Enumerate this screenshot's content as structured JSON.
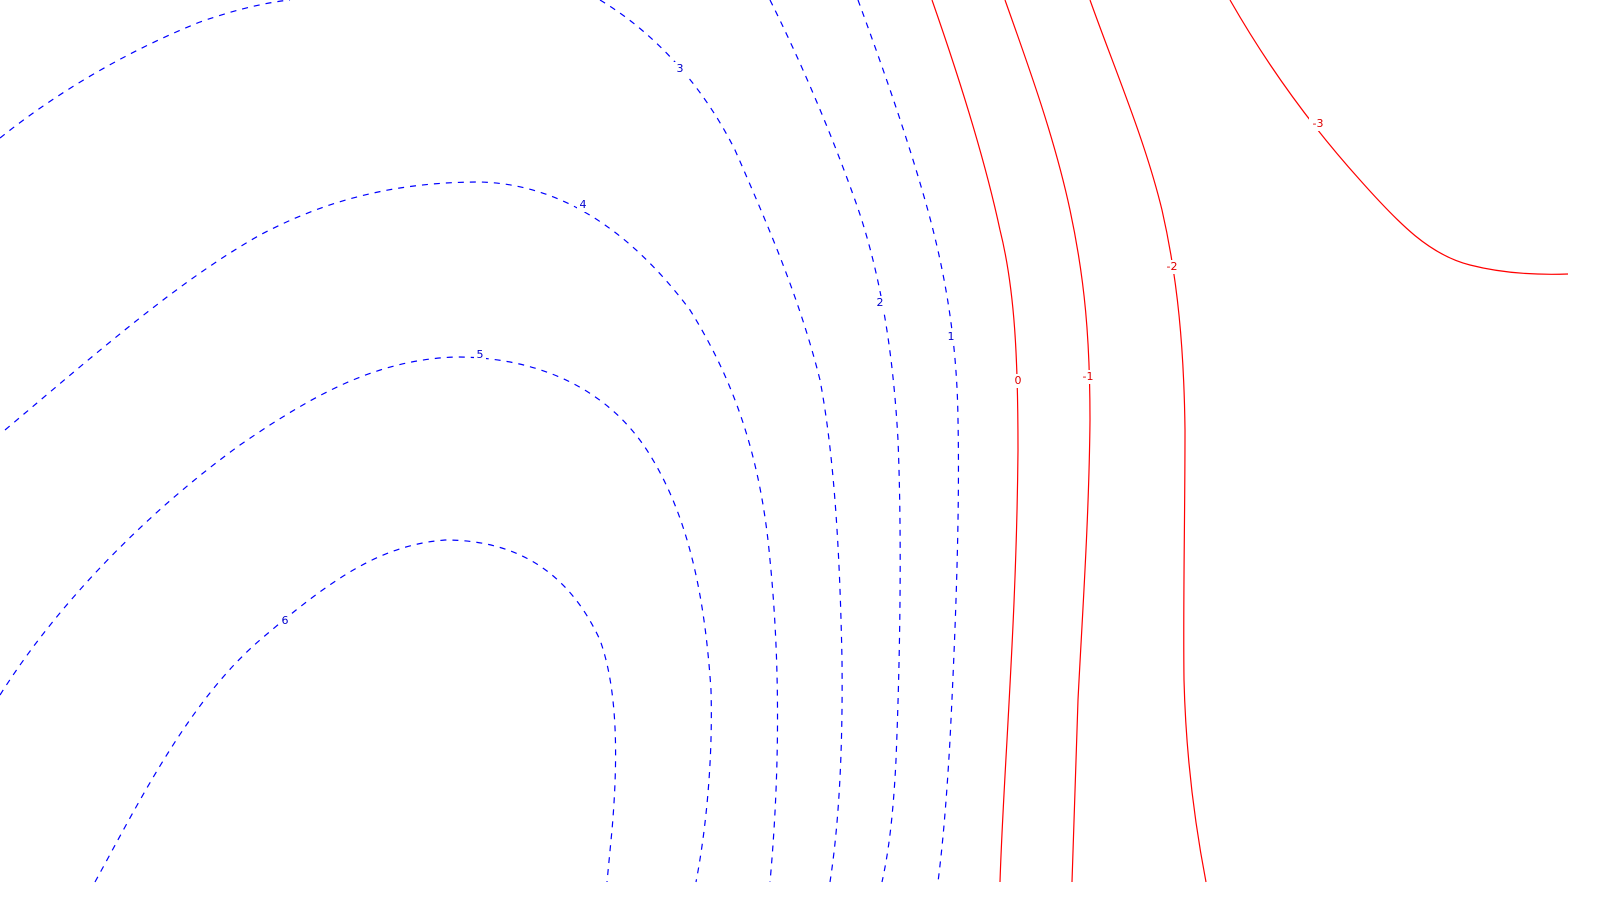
{
  "chart_data": {
    "type": "contour",
    "title": "",
    "xlabel": "",
    "ylabel": "",
    "grid": false,
    "colors": {
      "positive": "#0000ff",
      "negative": "#ff0000"
    },
    "styles": {
      "positive": "dashed",
      "negative": "solid"
    },
    "levels": [
      {
        "level": 6,
        "label": "6"
      },
      {
        "level": 5,
        "label": "5"
      },
      {
        "level": 4,
        "label": "4"
      },
      {
        "level": 3,
        "label": "3"
      },
      {
        "level": 2,
        "label": "2"
      },
      {
        "level": 1,
        "label": "1"
      },
      {
        "level": 0,
        "label": "0"
      },
      {
        "level": -1,
        "label": "-1"
      },
      {
        "level": -2,
        "label": "-2"
      },
      {
        "level": -3,
        "label": "-3"
      }
    ]
  }
}
